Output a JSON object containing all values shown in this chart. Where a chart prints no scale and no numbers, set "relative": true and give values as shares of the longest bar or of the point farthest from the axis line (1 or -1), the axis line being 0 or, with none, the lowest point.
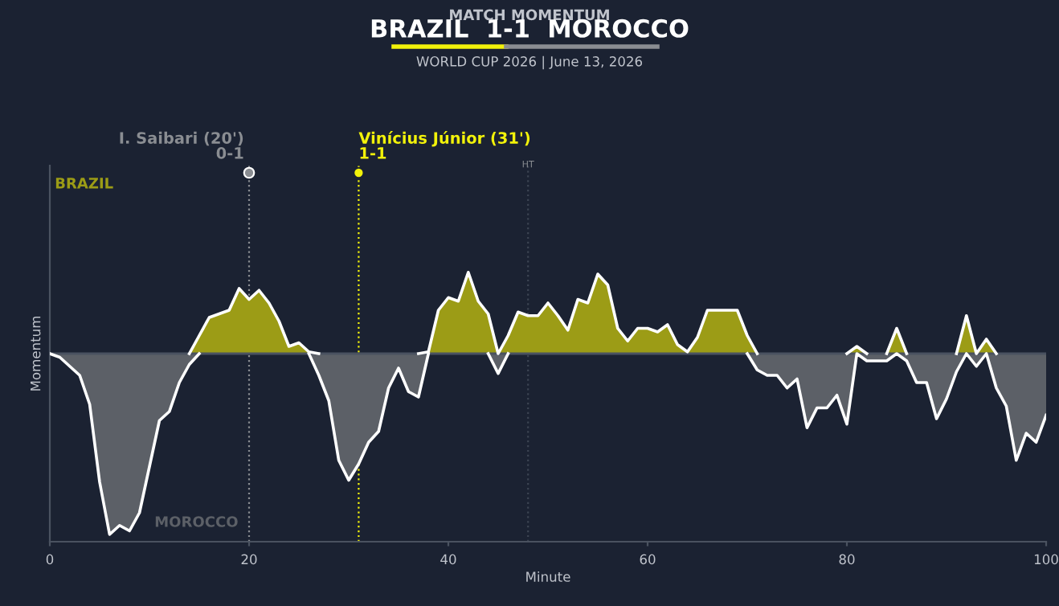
{
  "chart_data": {
    "type": "area",
    "title": "BRAZIL  1-1  MOROCCO",
    "subtitle": "WORLD CUP 2026 | June 13, 2026",
    "xlabel": "Minute",
    "ylabel": "Momentum",
    "relative": true,
    "xlim": [
      0,
      100
    ],
    "xticks": [
      0,
      20,
      40,
      60,
      80,
      100
    ],
    "tick_labels": "x",
    "grid": false,
    "legend": false,
    "marker": "none",
    "line_style": "solid",
    "x": [
      0,
      1,
      3,
      4,
      5,
      6,
      7,
      8,
      9,
      11,
      12,
      13,
      14,
      15,
      16,
      17,
      18,
      19,
      20,
      21,
      22,
      23,
      24,
      25,
      26,
      27,
      28,
      29,
      30,
      31,
      32,
      33,
      34,
      35,
      36,
      37,
      38,
      39,
      40,
      41,
      42,
      43,
      44,
      45,
      46,
      47,
      48,
      49,
      50,
      51,
      52,
      53,
      54,
      55,
      56,
      57,
      58,
      59,
      60,
      61,
      62,
      63,
      64,
      65,
      66,
      67,
      68,
      69,
      70,
      71,
      72,
      73,
      74,
      75,
      76,
      77,
      78,
      79,
      80,
      81,
      82,
      83,
      84,
      85,
      86,
      87,
      88,
      89,
      90,
      91,
      92,
      93,
      94,
      95,
      96,
      97,
      98,
      99,
      100
    ],
    "series": [
      {
        "name": "BRAZIL",
        "color": "#9c9c16",
        "values": [
          0,
          0,
          0,
          0,
          0,
          0,
          0,
          0,
          0,
          0,
          0,
          0,
          0,
          0.1,
          0.2,
          0.22,
          0.24,
          0.36,
          0.3,
          0.35,
          0.28,
          0.18,
          0.04,
          0.06,
          0.01,
          0,
          0,
          0,
          0,
          0,
          0,
          0,
          0,
          0,
          0,
          0,
          0.01,
          0.24,
          0.31,
          0.29,
          0.45,
          0.29,
          0.22,
          0,
          0.1,
          0.23,
          0.21,
          0.21,
          0.28,
          0.21,
          0.13,
          0.3,
          0.28,
          0.44,
          0.38,
          0.14,
          0.07,
          0.14,
          0.14,
          0.12,
          0.16,
          0.05,
          0.01,
          0.09,
          0.24,
          0.24,
          0.24,
          0.24,
          0.1,
          0,
          0,
          0,
          0,
          0,
          0,
          0,
          0,
          0,
          0,
          0.04,
          0,
          0,
          0,
          0.14,
          0,
          0,
          0,
          0,
          0,
          0,
          0.21,
          0,
          0.08,
          0,
          0,
          0,
          0,
          0,
          0
        ]
      },
      {
        "name": "MOROCCO",
        "color": "#5c6067",
        "values": [
          0,
          -0.02,
          -0.12,
          -0.28,
          -0.71,
          -1.0,
          -0.95,
          -0.98,
          -0.88,
          -0.37,
          -0.32,
          -0.16,
          -0.06,
          0,
          0,
          0,
          0,
          0,
          0,
          0,
          0,
          0,
          0,
          0,
          0,
          -0.12,
          -0.26,
          -0.59,
          -0.7,
          -0.61,
          -0.49,
          -0.43,
          -0.19,
          -0.08,
          -0.21,
          -0.24,
          0,
          0,
          0,
          0,
          0,
          0,
          0,
          -0.11,
          0,
          0,
          0,
          0,
          0,
          0,
          0,
          0,
          0,
          0,
          0,
          0,
          0,
          0,
          0,
          0,
          0,
          0,
          0,
          0,
          0,
          0,
          0,
          0,
          0,
          -0.09,
          -0.12,
          -0.12,
          -0.19,
          -0.14,
          -0.41,
          -0.3,
          -0.3,
          -0.23,
          -0.39,
          0,
          -0.04,
          -0.04,
          -0.04,
          0,
          -0.04,
          -0.16,
          -0.16,
          -0.36,
          -0.25,
          -0.1,
          0,
          -0.07,
          0,
          -0.19,
          -0.29,
          -0.59,
          -0.44,
          -0.49,
          -0.34
        ]
      }
    ],
    "ref_lines": [
      {
        "axis": "x",
        "value": 20,
        "label": "I. Saibari (20')\n0-1",
        "color": "#8a8d92",
        "line_style": "dotted"
      },
      {
        "axis": "x",
        "value": 31,
        "label": "Vinícius Júnior (31')\n1-1",
        "color": "#f2f20a",
        "line_style": "dotted"
      },
      {
        "axis": "x",
        "value": 48,
        "label": "HT",
        "color": "#3c4452",
        "line_style": "dotted"
      }
    ],
    "annotations": [
      "MATCH MOMENTUM"
    ]
  }
}
